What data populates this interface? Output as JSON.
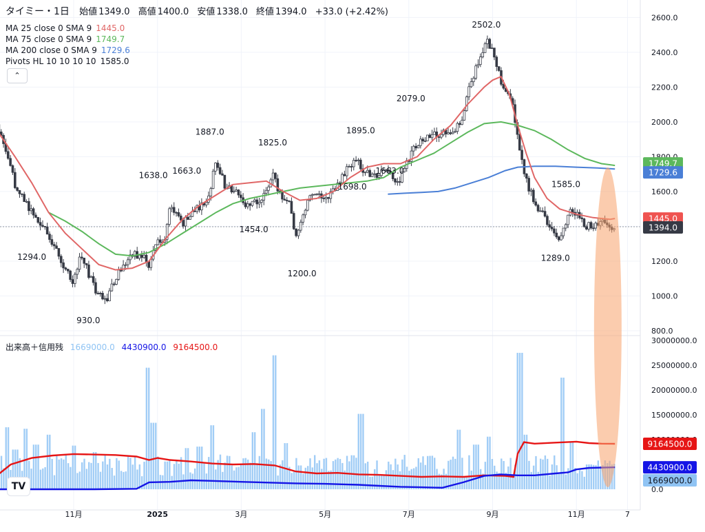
{
  "header": {
    "title": "タイミー・1日",
    "open_label": "始値",
    "open": "1349.0",
    "high_label": "高値",
    "high": "1400.0",
    "low_label": "安値",
    "low": "1338.0",
    "close_label": "終値",
    "close": "1394.0",
    "change": "+33.0 (+2.42%)"
  },
  "indicators": [
    {
      "label": "MA 25 close 0 SMA 9",
      "value": "1445.0",
      "color": "#e06666"
    },
    {
      "label": "MA 75 close 0 SMA 9",
      "value": "1749.7",
      "color": "#5cb85c"
    },
    {
      "label": "MA 200 close 0 SMA 9",
      "value": "1729.6",
      "color": "#4a7fd6"
    },
    {
      "label": "Pivots HL 10 10 10 10",
      "value": "1585.0",
      "color": "#131722"
    }
  ],
  "volume_legend": {
    "label": "出来高＋信用残",
    "volume": "1669000.0",
    "volume_color": "#90c4f4",
    "buy_margin": "4430900.0",
    "buy_margin_color": "#1515e6",
    "sell_margin": "9164500.0",
    "sell_margin_color": "#e61515"
  },
  "chart_data": {
    "type": "candlestick",
    "price_axis": {
      "ticks": [
        "800.0",
        "1000.0",
        "1200.0",
        "1400.0",
        "1600.0",
        "1800.0",
        "2000.0",
        "2200.0",
        "2400.0",
        "2600.0"
      ],
      "range": [
        800,
        2620
      ]
    },
    "volume_axis": {
      "ticks": [
        "0.0",
        "5000000.0",
        "10000000.0",
        "15000000.0",
        "20000000.0",
        "25000000.0",
        "30000000.0"
      ],
      "range": [
        0,
        30000000
      ]
    },
    "x_axis": {
      "ticks": [
        {
          "label": "11月",
          "month": 11
        },
        {
          "label": "2025",
          "month": 13
        },
        {
          "label": "3月",
          "month": 15
        },
        {
          "label": "5月",
          "month": 17
        },
        {
          "label": "7月",
          "month": 19
        },
        {
          "label": "9月",
          "month": 21
        },
        {
          "label": "11月",
          "month": 23
        },
        {
          "label": "7",
          "month": 24.22
        }
      ]
    },
    "pivot_labels": [
      {
        "text": "1294.0",
        "month": 10.0,
        "price": 1294
      },
      {
        "text": "930.0",
        "month": 11.35,
        "price": 930
      },
      {
        "text": "1638.0",
        "month": 12.9,
        "price": 1638
      },
      {
        "text": "1663.0",
        "month": 13.7,
        "price": 1663
      },
      {
        "text": "1887.0",
        "month": 14.25,
        "price": 1887
      },
      {
        "text": "1825.0",
        "month": 15.75,
        "price": 1825
      },
      {
        "text": "1454.0",
        "month": 15.3,
        "price": 1454
      },
      {
        "text": "1200.0",
        "month": 16.45,
        "price": 1200
      },
      {
        "text": "1895.0",
        "month": 17.85,
        "price": 1895
      },
      {
        "text": "1698.0",
        "month": 17.65,
        "price": 1698
      },
      {
        "text": "1663.0",
        "month": 18.55,
        "price": 1663
      },
      {
        "text": "2079.0",
        "month": 19.05,
        "price": 2079
      },
      {
        "text": "2502.0",
        "month": 20.85,
        "price": 2502
      },
      {
        "text": "1585.0",
        "month": 22.75,
        "price": 1585
      },
      {
        "text": "1289.0",
        "month": 22.5,
        "price": 1289
      }
    ],
    "price_path": [
      [
        9.05,
        2020
      ],
      [
        9.3,
        1900
      ],
      [
        9.6,
        1640
      ],
      [
        9.9,
        1520
      ],
      [
        10.3,
        1400
      ],
      [
        10.7,
        1200
      ],
      [
        11.0,
        1080
      ],
      [
        11.15,
        1240
      ],
      [
        11.5,
        1050
      ],
      [
        11.75,
        960
      ],
      [
        11.95,
        1080
      ],
      [
        12.3,
        1210
      ],
      [
        12.6,
        1250
      ],
      [
        12.8,
        1180
      ],
      [
        13.0,
        1350
      ],
      [
        13.15,
        1300
      ],
      [
        13.3,
        1520
      ],
      [
        13.6,
        1420
      ],
      [
        13.9,
        1500
      ],
      [
        14.2,
        1550
      ],
      [
        14.4,
        1790
      ],
      [
        14.6,
        1640
      ],
      [
        14.9,
        1600
      ],
      [
        15.1,
        1520
      ],
      [
        15.4,
        1540
      ],
      [
        15.6,
        1590
      ],
      [
        15.75,
        1700
      ],
      [
        15.95,
        1560
      ],
      [
        16.15,
        1540
      ],
      [
        16.3,
        1350
      ],
      [
        16.45,
        1450
      ],
      [
        16.6,
        1540
      ],
      [
        16.8,
        1600
      ],
      [
        17.1,
        1560
      ],
      [
        17.3,
        1650
      ],
      [
        17.5,
        1720
      ],
      [
        17.75,
        1780
      ],
      [
        17.95,
        1720
      ],
      [
        18.2,
        1700
      ],
      [
        18.5,
        1700
      ],
      [
        18.75,
        1660
      ],
      [
        19.0,
        1780
      ],
      [
        19.2,
        1880
      ],
      [
        19.5,
        1920
      ],
      [
        19.8,
        1940
      ],
      [
        20.1,
        1960
      ],
      [
        20.3,
        2020
      ],
      [
        20.45,
        2220
      ],
      [
        20.6,
        2300
      ],
      [
        20.75,
        2400
      ],
      [
        20.9,
        2460
      ],
      [
        21.05,
        2360
      ],
      [
        21.25,
        2200
      ],
      [
        21.45,
        2120
      ],
      [
        21.6,
        1920
      ],
      [
        21.8,
        1660
      ],
      [
        22.05,
        1520
      ],
      [
        22.3,
        1420
      ],
      [
        22.55,
        1330
      ],
      [
        22.75,
        1420
      ],
      [
        22.9,
        1500
      ],
      [
        23.05,
        1460
      ],
      [
        23.25,
        1400
      ],
      [
        23.5,
        1420
      ],
      [
        23.65,
        1440
      ],
      [
        23.8,
        1390
      ],
      [
        23.92,
        1394
      ]
    ],
    "ma25": [
      [
        9.0,
        1900
      ],
      [
        9.2,
        1940
      ],
      [
        9.6,
        1800
      ],
      [
        10.0,
        1650
      ],
      [
        10.4,
        1480
      ],
      [
        10.8,
        1360
      ],
      [
        11.2,
        1270
      ],
      [
        11.6,
        1180
      ],
      [
        12.0,
        1150
      ],
      [
        12.4,
        1160
      ],
      [
        12.8,
        1200
      ],
      [
        13.2,
        1330
      ],
      [
        13.6,
        1440
      ],
      [
        14.0,
        1520
      ],
      [
        14.4,
        1580
      ],
      [
        14.8,
        1640
      ],
      [
        15.2,
        1650
      ],
      [
        15.6,
        1660
      ],
      [
        16.0,
        1600
      ],
      [
        16.4,
        1550
      ],
      [
        16.8,
        1560
      ],
      [
        17.2,
        1600
      ],
      [
        17.6,
        1680
      ],
      [
        18.0,
        1740
      ],
      [
        18.4,
        1760
      ],
      [
        18.8,
        1760
      ],
      [
        19.2,
        1800
      ],
      [
        19.6,
        1900
      ],
      [
        20.0,
        1980
      ],
      [
        20.4,
        2100
      ],
      [
        20.8,
        2200
      ],
      [
        21.0,
        2240
      ],
      [
        21.2,
        2260
      ],
      [
        21.4,
        2160
      ],
      [
        21.6,
        1980
      ],
      [
        21.8,
        1820
      ],
      [
        22.0,
        1680
      ],
      [
        22.3,
        1560
      ],
      [
        22.6,
        1500
      ],
      [
        23.0,
        1470
      ],
      [
        23.4,
        1450
      ],
      [
        23.8,
        1440
      ],
      [
        23.92,
        1445
      ]
    ],
    "ma75": [
      [
        10.4,
        1480
      ],
      [
        10.8,
        1430
      ],
      [
        11.2,
        1370
      ],
      [
        11.6,
        1300
      ],
      [
        12.0,
        1240
      ],
      [
        12.4,
        1230
      ],
      [
        12.8,
        1250
      ],
      [
        13.2,
        1300
      ],
      [
        13.6,
        1360
      ],
      [
        14.0,
        1420
      ],
      [
        14.4,
        1480
      ],
      [
        14.8,
        1530
      ],
      [
        15.2,
        1560
      ],
      [
        15.6,
        1580
      ],
      [
        16.0,
        1600
      ],
      [
        16.4,
        1620
      ],
      [
        16.8,
        1630
      ],
      [
        17.2,
        1640
      ],
      [
        17.6,
        1650
      ],
      [
        18.0,
        1660
      ],
      [
        18.4,
        1680
      ],
      [
        18.8,
        1740
      ],
      [
        19.2,
        1780
      ],
      [
        19.6,
        1820
      ],
      [
        20.0,
        1880
      ],
      [
        20.4,
        1940
      ],
      [
        20.8,
        1990
      ],
      [
        21.2,
        2000
      ],
      [
        21.6,
        1980
      ],
      [
        22.0,
        1950
      ],
      [
        22.4,
        1900
      ],
      [
        22.8,
        1840
      ],
      [
        23.2,
        1790
      ],
      [
        23.6,
        1760
      ],
      [
        23.92,
        1749.7
      ]
    ],
    "ma200": [
      [
        18.5,
        1585
      ],
      [
        18.9,
        1590
      ],
      [
        19.3,
        1595
      ],
      [
        19.7,
        1600
      ],
      [
        20.1,
        1620
      ],
      [
        20.5,
        1650
      ],
      [
        20.9,
        1680
      ],
      [
        21.3,
        1720
      ],
      [
        21.6,
        1740
      ],
      [
        22.0,
        1745
      ],
      [
        22.5,
        1745
      ],
      [
        23.0,
        1740
      ],
      [
        23.5,
        1735
      ],
      [
        23.92,
        1729.6
      ]
    ],
    "sell_margin_path": [
      [
        9.0,
        2500000
      ],
      [
        9.2,
        3000000
      ],
      [
        9.5,
        5000000
      ],
      [
        10.0,
        6300000
      ],
      [
        10.5,
        6800000
      ],
      [
        11.0,
        7100000
      ],
      [
        11.5,
        7000000
      ],
      [
        12.0,
        6900000
      ],
      [
        12.5,
        6600000
      ],
      [
        12.8,
        5900000
      ],
      [
        13.0,
        6300000
      ],
      [
        13.3,
        5900000
      ],
      [
        13.8,
        5600000
      ],
      [
        14.3,
        5200000
      ],
      [
        14.8,
        5000000
      ],
      [
        15.3,
        5100000
      ],
      [
        15.8,
        4800000
      ],
      [
        16.3,
        3600000
      ],
      [
        16.8,
        3200000
      ],
      [
        17.3,
        3300000
      ],
      [
        17.8,
        3000000
      ],
      [
        18.3,
        2900000
      ],
      [
        18.8,
        2700000
      ],
      [
        19.3,
        2500000
      ],
      [
        19.8,
        2600000
      ],
      [
        20.3,
        2500000
      ],
      [
        20.8,
        2800000
      ],
      [
        21.3,
        2700000
      ],
      [
        21.5,
        2500000
      ],
      [
        21.6,
        7200000
      ],
      [
        21.75,
        9500000
      ],
      [
        22.0,
        9200000
      ],
      [
        22.5,
        9400000
      ],
      [
        23.0,
        9600000
      ],
      [
        23.3,
        9300000
      ],
      [
        23.6,
        9200000
      ],
      [
        23.92,
        9164500
      ]
    ],
    "buy_margin_path": [
      [
        9.0,
        0
      ],
      [
        11.5,
        0
      ],
      [
        12.5,
        100000
      ],
      [
        12.8,
        1400000
      ],
      [
        13.3,
        1500000
      ],
      [
        13.8,
        1800000
      ],
      [
        14.3,
        1700000
      ],
      [
        15.0,
        1500000
      ],
      [
        15.8,
        1300000
      ],
      [
        16.3,
        1200000
      ],
      [
        17.0,
        1100000
      ],
      [
        17.8,
        900000
      ],
      [
        18.3,
        700000
      ],
      [
        18.8,
        500000
      ],
      [
        19.3,
        400000
      ],
      [
        19.8,
        300000
      ],
      [
        20.3,
        1400000
      ],
      [
        20.8,
        2700000
      ],
      [
        21.2,
        3000000
      ],
      [
        21.6,
        2800000
      ],
      [
        22.0,
        2800000
      ],
      [
        22.5,
        3200000
      ],
      [
        22.8,
        3400000
      ],
      [
        23.0,
        4000000
      ],
      [
        23.3,
        4300000
      ],
      [
        23.92,
        4430900
      ]
    ],
    "volume_bars": [
      [
        9.1,
        14600000
      ],
      [
        9.4,
        12500000
      ],
      [
        9.6,
        8000000
      ],
      [
        9.85,
        12200000
      ],
      [
        10.1,
        9000000
      ],
      [
        10.4,
        11000000
      ],
      [
        10.7,
        6000000
      ],
      [
        11.0,
        8800000
      ],
      [
        11.5,
        7500000
      ],
      [
        11.8,
        5000000
      ],
      [
        12.1,
        3700000
      ],
      [
        12.45,
        4700000
      ],
      [
        12.75,
        24500000
      ],
      [
        12.9,
        13400000
      ],
      [
        13.2,
        5600000
      ],
      [
        13.7,
        8300000
      ],
      [
        14.0,
        8600000
      ],
      [
        14.3,
        12900000
      ],
      [
        14.55,
        3500000
      ],
      [
        15.3,
        11500000
      ],
      [
        15.5,
        16200000
      ],
      [
        15.8,
        27000000
      ],
      [
        16.05,
        9300000
      ],
      [
        16.4,
        4800000
      ],
      [
        17.0,
        3000000
      ],
      [
        17.4,
        3500000
      ],
      [
        17.85,
        15200000
      ],
      [
        18.3,
        2900000
      ],
      [
        18.7,
        5000000
      ],
      [
        19.05,
        3200000
      ],
      [
        19.5,
        6700000
      ],
      [
        19.95,
        3200000
      ],
      [
        20.2,
        12000000
      ],
      [
        20.6,
        9000000
      ],
      [
        20.9,
        10600000
      ],
      [
        21.25,
        5700000
      ],
      [
        21.65,
        27500000
      ],
      [
        21.8,
        11000000
      ],
      [
        22.15,
        6000000
      ],
      [
        22.65,
        22500000
      ],
      [
        22.9,
        9500000
      ],
      [
        23.3,
        5000000
      ],
      [
        23.6,
        2100000
      ],
      [
        23.92,
        1669000
      ]
    ],
    "last_price": 1394,
    "price_tags": [
      {
        "value": "1749.7",
        "price": 1749.7,
        "color": "#5cb85c"
      },
      {
        "value": "1729.6",
        "price": 1729.6,
        "color": "#4a7fd6"
      },
      {
        "value": "1445.0",
        "price": 1445,
        "color": "#ef5350"
      },
      {
        "value": "1394.0",
        "price": 1394,
        "color": "#363a45"
      }
    ],
    "volume_tags": [
      {
        "value": "9164500.0",
        "volume": 9164500,
        "color": "#e61515"
      },
      {
        "value": "4430900.0",
        "volume": 4430900,
        "color": "#1515e6"
      },
      {
        "value": "1669000.0",
        "volume": 1669000,
        "color": "#90c4f4"
      }
    ],
    "annotation": {
      "shape": "ellipse",
      "color": "#f7a26b"
    }
  }
}
